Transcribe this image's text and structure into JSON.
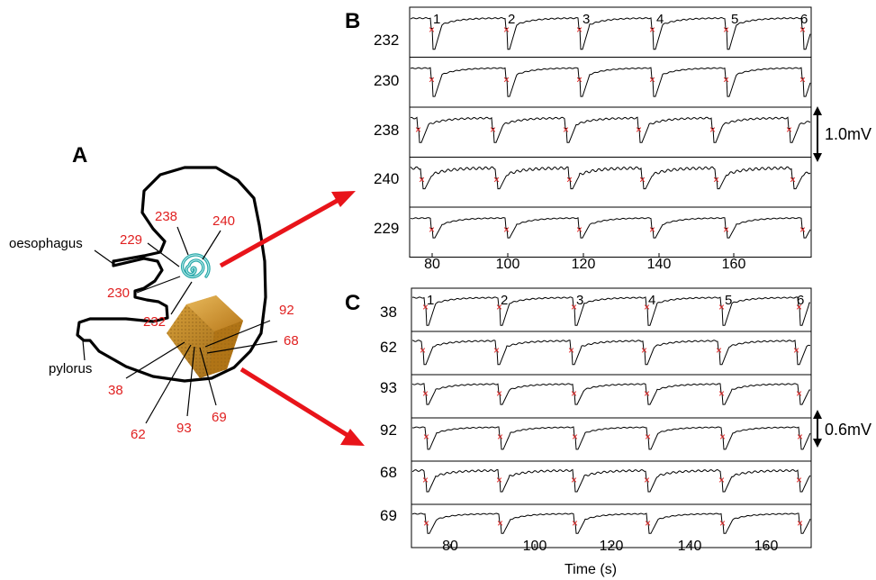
{
  "panel_a": {
    "letter": "A",
    "organ_labels": {
      "oesophagus": "oesophagus",
      "pylorus": "pylorus"
    },
    "spiral_electrodes": [
      "238",
      "240",
      "229",
      "230",
      "232"
    ],
    "array_electrodes": [
      "92",
      "68",
      "38",
      "62",
      "93",
      "69"
    ],
    "colors": {
      "electrode_label": "#e02020",
      "arrow": "#e8141a",
      "spiral": "#2aa7a8",
      "array": "#c98a1c"
    }
  },
  "panel_b": {
    "letter": "B",
    "channels": [
      "232",
      "230",
      "238",
      "240",
      "229"
    ],
    "cycle_labels": [
      "1",
      "2",
      "3",
      "4",
      "5",
      "6"
    ],
    "x_ticks": [
      "80",
      "100",
      "120",
      "140",
      "160"
    ],
    "scale_bar": "1.0mV"
  },
  "panel_c": {
    "letter": "C",
    "channels": [
      "38",
      "62",
      "93",
      "92",
      "68",
      "69"
    ],
    "cycle_labels": [
      "1",
      "2",
      "3",
      "4",
      "5",
      "6"
    ],
    "x_ticks": [
      "80",
      "100",
      "120",
      "140",
      "160"
    ],
    "scale_bar": "0.6mV",
    "x_axis_title": "Time (s)"
  }
}
